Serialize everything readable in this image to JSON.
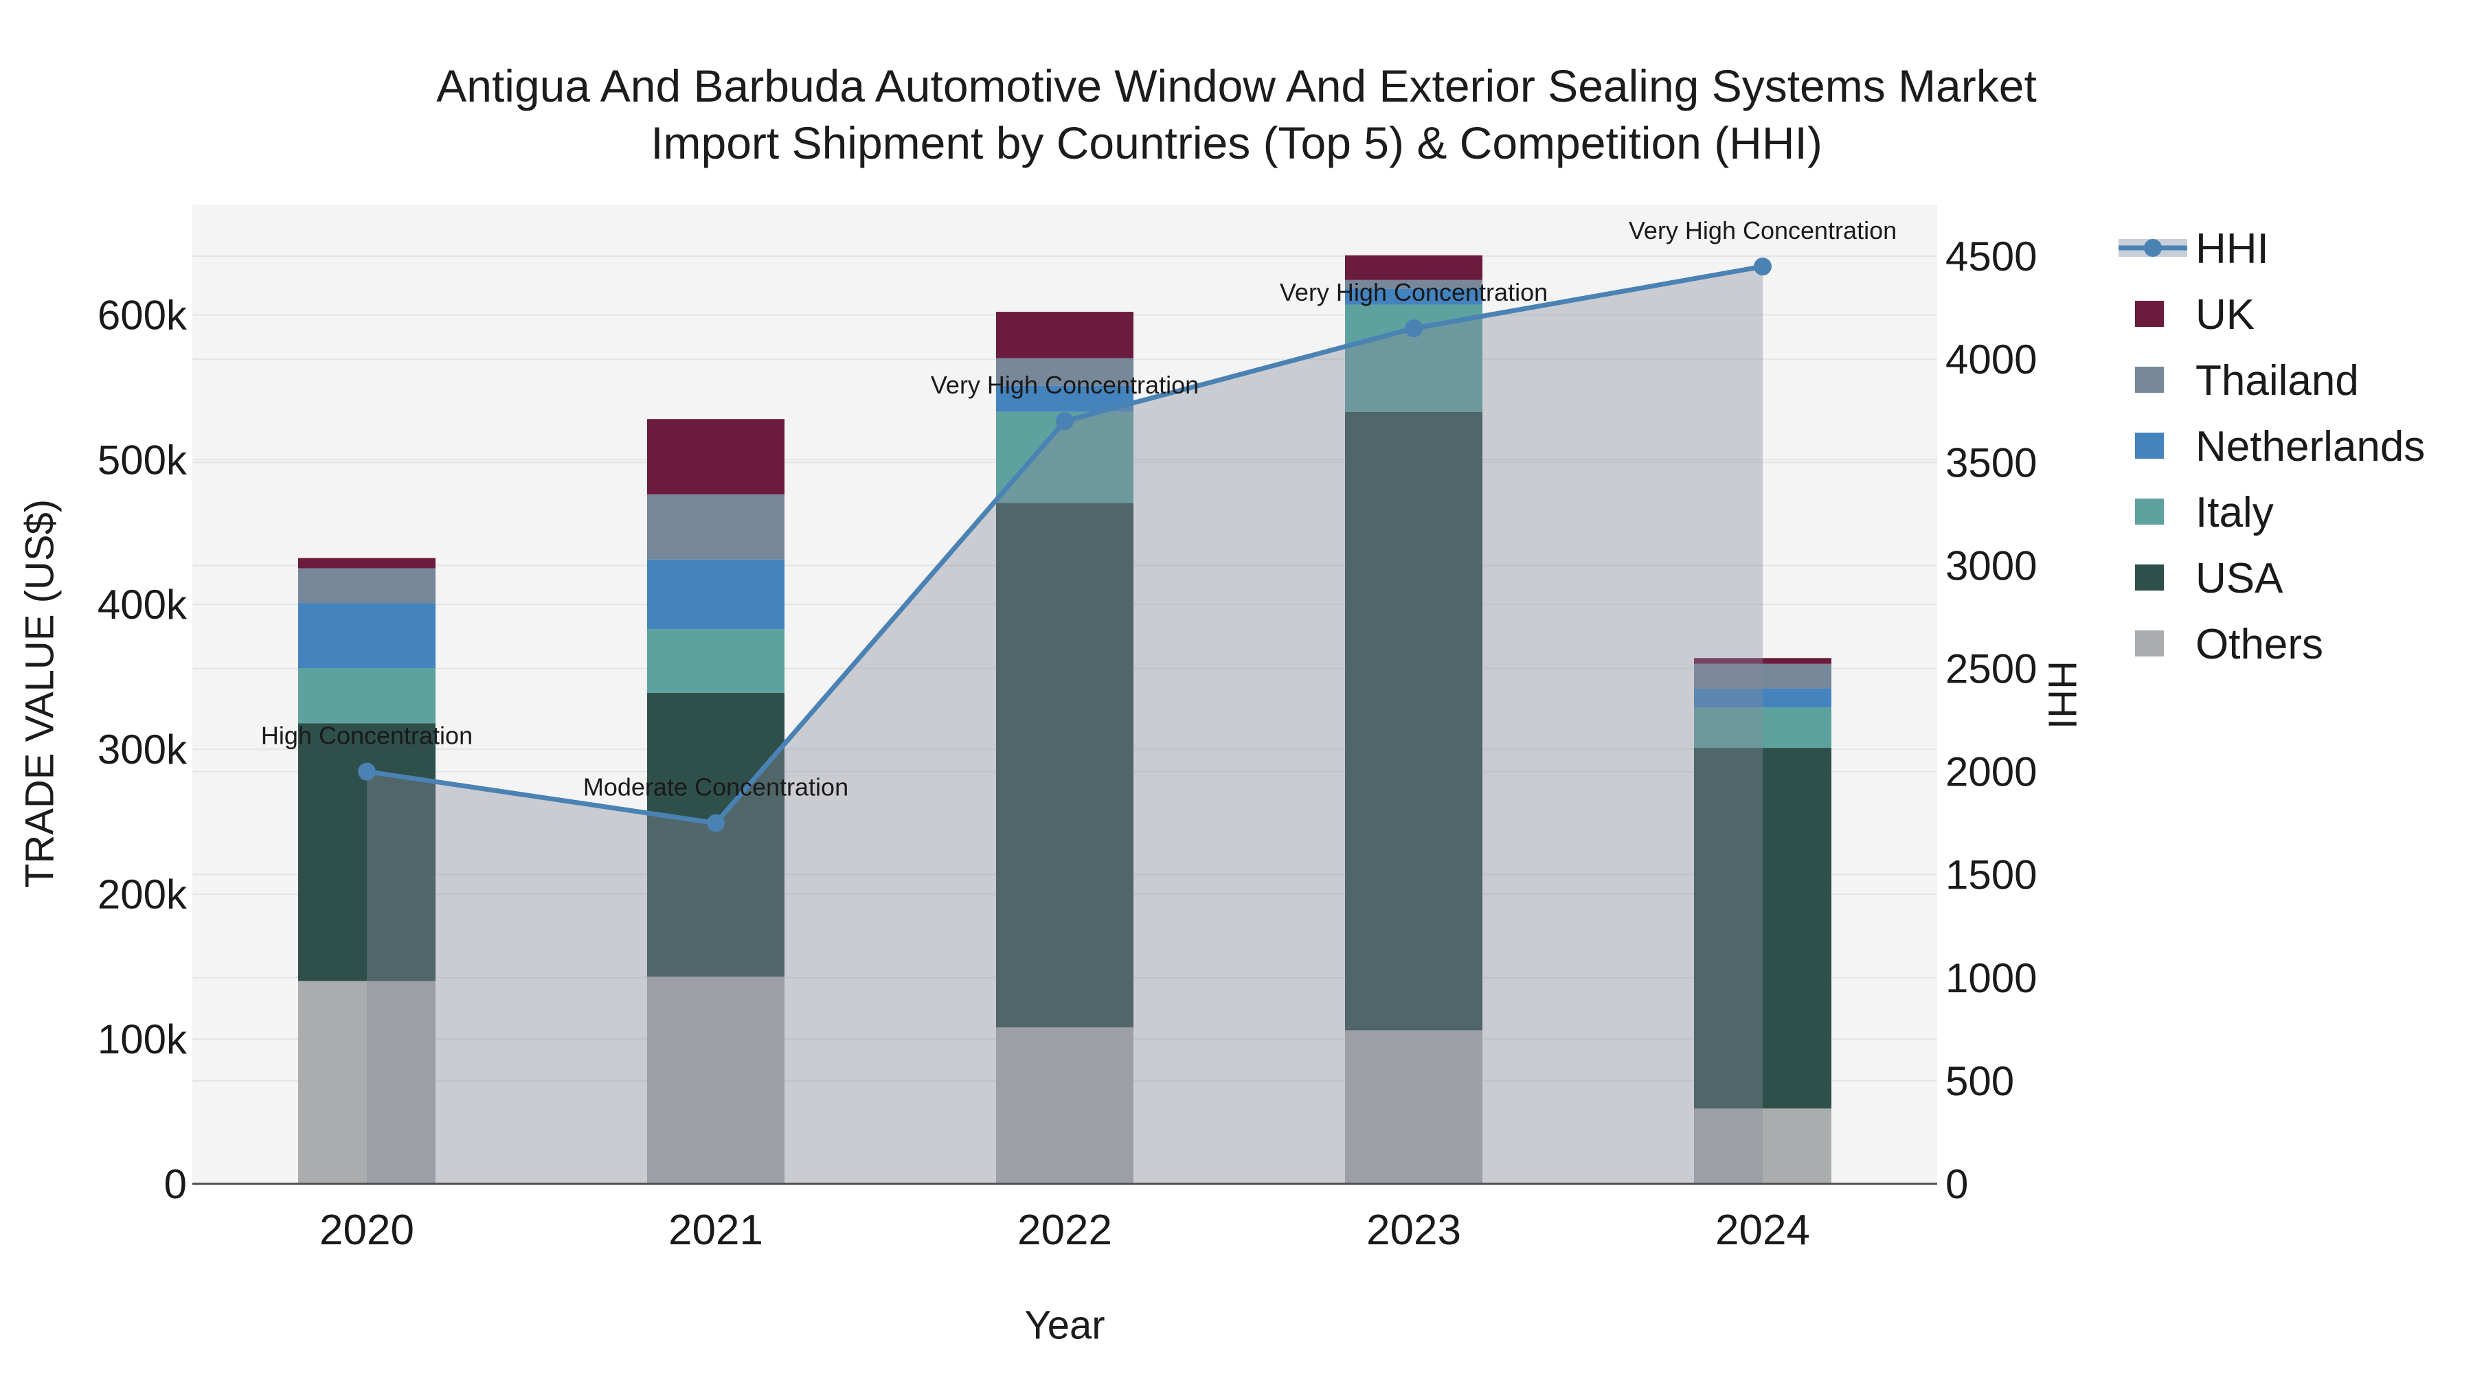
{
  "chart_data": {
    "type": "bar",
    "stacked": true,
    "secondary_type": "line",
    "title": "Antigua And Barbuda Automotive Window And Exterior Sealing Systems Market",
    "subtitle": "Import Shipment by Countries (Top 5) & Competition (HHI)",
    "xlabel": "Year",
    "ylabel": "TRADE VALUE (US$)",
    "y2label": "HHI",
    "categories": [
      "2020",
      "2021",
      "2022",
      "2023",
      "2024"
    ],
    "series": [
      {
        "name": "UK",
        "color": "#6B1B3C",
        "values": [
          7000,
          52000,
          32000,
          17000,
          4000
        ]
      },
      {
        "name": "Thailand",
        "color": "#78889B",
        "values": [
          24000,
          45000,
          19000,
          6000,
          17000
        ]
      },
      {
        "name": "Netherlands",
        "color": "#4483BE",
        "values": [
          45000,
          48000,
          18000,
          11000,
          13000
        ]
      },
      {
        "name": "Italy",
        "color": "#5EA2A0",
        "values": [
          38000,
          44000,
          63000,
          74000,
          28000
        ]
      },
      {
        "name": "USA",
        "color": "#2F4F4A",
        "values": [
          178000,
          196000,
          362000,
          427000,
          249000
        ]
      },
      {
        "name": "Others",
        "color": "#ABACAD",
        "values": [
          140000,
          143000,
          108000,
          106000,
          52000
        ]
      }
    ],
    "hhi": {
      "name": "HHI",
      "line_color": "#4A82B4",
      "area_color": "#868B9B",
      "area_opacity": 0.38,
      "legend_band_color": "#C8CEDA",
      "values": [
        2000,
        1750,
        3700,
        4150,
        4450
      ]
    },
    "annotations": [
      {
        "category": "2020",
        "text": "High Concentration"
      },
      {
        "category": "2021",
        "text": "Moderate Concentration"
      },
      {
        "category": "2022",
        "text": "Very High Concentration"
      },
      {
        "category": "2023",
        "text": "Very High Concentration"
      },
      {
        "category": "2024",
        "text": "Very High Concentration"
      }
    ],
    "left_axis": {
      "ticks": [
        0,
        100000,
        200000,
        300000,
        400000,
        500000,
        600000
      ],
      "max": 676000,
      "tick_format": "k"
    },
    "right_axis": {
      "ticks": [
        0,
        500,
        1000,
        1500,
        2000,
        2500,
        3000,
        3500,
        4000,
        4500
      ],
      "max": 4750
    },
    "legend_order": [
      "HHI",
      "UK",
      "Thailand",
      "Netherlands",
      "Italy",
      "USA",
      "Others"
    ],
    "layout_hints": {
      "plot_bg": "#F4F4F4",
      "grid_color": "#E2E4E6",
      "axisline_color": "#4D4D4D",
      "legend_position": "right"
    }
  }
}
